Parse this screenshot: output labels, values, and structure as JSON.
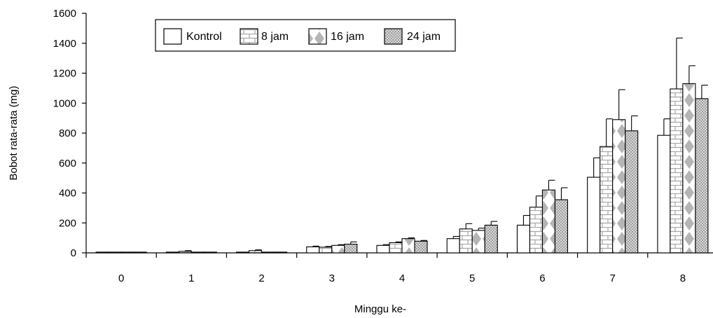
{
  "chart_data": {
    "type": "bar",
    "title": "",
    "xlabel": "Minggu ke-",
    "ylabel": "Bobot rata-rata (mg)",
    "ylim": [
      0,
      1600
    ],
    "yticks": [
      0,
      200,
      400,
      600,
      800,
      1000,
      1200,
      1400,
      1600
    ],
    "grid": false,
    "legend_position": "top-center",
    "categories": [
      "0",
      "1",
      "2",
      "3",
      "4",
      "5",
      "6",
      "7",
      "8"
    ],
    "series": [
      {
        "name": "Kontrol",
        "pattern": "plain",
        "values": [
          5,
          5,
          5,
          40,
          50,
          95,
          185,
          505,
          785
        ],
        "error": [
          0,
          0,
          0,
          5,
          5,
          15,
          65,
          130,
          110
        ]
      },
      {
        "name": "8 jam",
        "pattern": "brick",
        "values": [
          5,
          10,
          15,
          38,
          68,
          160,
          305,
          710,
          1095
        ],
        "error": [
          0,
          5,
          5,
          5,
          5,
          35,
          75,
          185,
          340
        ]
      },
      {
        "name": "16 jam",
        "pattern": "diamond",
        "values": [
          5,
          5,
          5,
          50,
          95,
          150,
          420,
          890,
          1130
        ],
        "error": [
          0,
          0,
          0,
          5,
          5,
          15,
          65,
          200,
          120
        ]
      },
      {
        "name": "24 jam",
        "pattern": "checker",
        "values": [
          5,
          5,
          5,
          58,
          78,
          185,
          355,
          815,
          1030
        ],
        "error": [
          0,
          0,
          0,
          15,
          5,
          25,
          80,
          100,
          90
        ]
      }
    ]
  },
  "colors": {
    "bar_stroke": "#000000",
    "pattern_fill": "#b8b8b8",
    "background": "#ffffff"
  }
}
